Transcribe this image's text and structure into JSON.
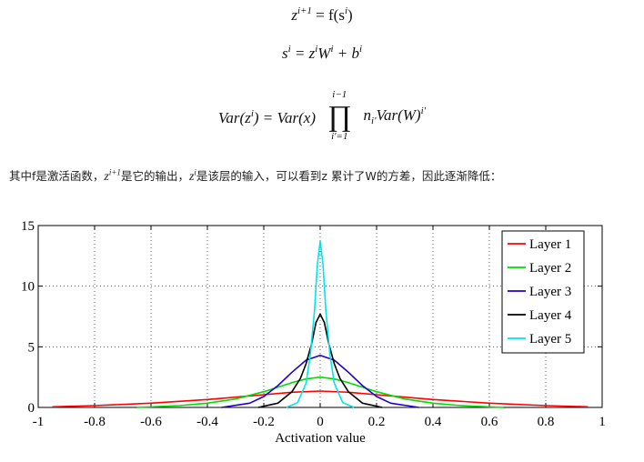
{
  "equations": {
    "eq1": {
      "lhs": "z",
      "lhs_sup": "i+1",
      "rhs": "= f(s",
      "rhs_sup": "i",
      "close": ")"
    },
    "eq2": {
      "a": "s",
      "a_sup": "i",
      "b": "= z",
      "b_sup": "i",
      "c": "W",
      "c_sup": "i",
      "d": "+ b",
      "d_sup": "i"
    },
    "eq3": {
      "lhs": "Var(z",
      "lhs_sup": "i",
      "mid": ") = Var(x)",
      "prod_top": "i−1",
      "prod_sym": "∏",
      "prod_bot": "i′=1",
      "n": "n",
      "n_sub": "i′",
      "tail": "Var(W)",
      "tail_sup": "i′"
    }
  },
  "paragraph": {
    "t1": "其中f是激活函数，",
    "z1": "z",
    "z1_sup": "i+1",
    "t2": "是它的输出，",
    "z2": "z",
    "z2_sup": "i",
    "t3": "是该层的输入，可以看到z 累计了W的方差，因此逐渐降低："
  },
  "chart_data": {
    "type": "line",
    "xlabel": "Activation value",
    "ylabel": "",
    "title": "",
    "xlim": [
      -1,
      1
    ],
    "ylim": [
      0,
      15
    ],
    "xticks": [
      -1,
      -0.8,
      -0.6,
      -0.4,
      -0.2,
      0,
      0.2,
      0.4,
      0.6,
      0.8,
      1
    ],
    "xtick_labels": [
      "-1",
      "-0.8",
      "-0.6",
      "-0.4",
      "-0.2",
      "0",
      "0.2",
      "0.4",
      "0.6",
      "0.8",
      "1"
    ],
    "yticks": [
      0,
      5,
      10,
      15
    ],
    "ytick_labels": [
      "0",
      "5",
      "10",
      "15"
    ],
    "grid": true,
    "legend_position": "top-right",
    "series": [
      {
        "name": "Layer 1",
        "color": "#ff0000",
        "x": [
          -0.95,
          -0.8,
          -0.6,
          -0.4,
          -0.3,
          -0.2,
          -0.1,
          0,
          0.1,
          0.2,
          0.3,
          0.4,
          0.6,
          0.8,
          0.95
        ],
        "y": [
          0.05,
          0.15,
          0.35,
          0.65,
          0.85,
          1.05,
          1.25,
          1.35,
          1.25,
          1.05,
          0.85,
          0.65,
          0.35,
          0.15,
          0.05
        ]
      },
      {
        "name": "Layer 2",
        "color": "#00dd00",
        "x": [
          -0.65,
          -0.5,
          -0.4,
          -0.3,
          -0.2,
          -0.1,
          -0.05,
          0,
          0.05,
          0.1,
          0.2,
          0.3,
          0.4,
          0.5,
          0.65
        ],
        "y": [
          0.0,
          0.15,
          0.35,
          0.7,
          1.3,
          2.05,
          2.35,
          2.5,
          2.35,
          2.05,
          1.3,
          0.7,
          0.35,
          0.15,
          0.0
        ]
      },
      {
        "name": "Layer 3",
        "color": "#2200cc",
        "x": [
          -0.35,
          -0.25,
          -0.2,
          -0.15,
          -0.1,
          -0.05,
          0,
          0.05,
          0.1,
          0.15,
          0.2,
          0.25,
          0.35
        ],
        "y": [
          0.0,
          0.35,
          0.9,
          1.8,
          2.9,
          3.9,
          4.3,
          3.9,
          2.9,
          1.8,
          0.9,
          0.35,
          0.0
        ]
      },
      {
        "name": "Layer 4",
        "color": "#000000",
        "x": [
          -0.22,
          -0.15,
          -0.1,
          -0.07,
          -0.05,
          -0.03,
          -0.015,
          0,
          0.015,
          0.03,
          0.05,
          0.07,
          0.1,
          0.15,
          0.22
        ],
        "y": [
          0.0,
          0.35,
          1.3,
          2.4,
          3.6,
          5.3,
          7.0,
          7.7,
          7.0,
          5.3,
          3.6,
          2.4,
          1.3,
          0.35,
          0.0
        ]
      },
      {
        "name": "Layer 5",
        "color": "#00e5ee",
        "x": [
          -0.12,
          -0.08,
          -0.05,
          -0.035,
          -0.02,
          -0.01,
          0,
          0.01,
          0.02,
          0.035,
          0.05,
          0.08,
          0.12
        ],
        "y": [
          0.0,
          0.4,
          2.0,
          4.3,
          8.0,
          11.8,
          13.7,
          11.8,
          8.0,
          4.3,
          2.0,
          0.4,
          0.0
        ]
      }
    ]
  }
}
